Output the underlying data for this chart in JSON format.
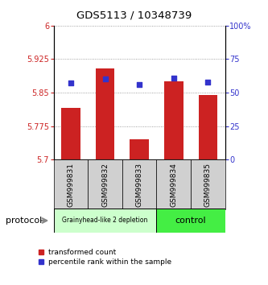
{
  "title": "GDS5113 / 10348739",
  "samples": [
    "GSM999831",
    "GSM999832",
    "GSM999833",
    "GSM999834",
    "GSM999835"
  ],
  "bar_values": [
    5.815,
    5.905,
    5.745,
    5.875,
    5.845
  ],
  "bar_bottom": 5.7,
  "blue_values": [
    57,
    60,
    56,
    61,
    58
  ],
  "ylim_left": [
    5.7,
    6.0
  ],
  "ylim_right": [
    0,
    100
  ],
  "yticks_left": [
    5.7,
    5.775,
    5.85,
    5.925,
    6.0
  ],
  "ytick_labels_left": [
    "5.7",
    "5.775",
    "5.85",
    "5.925",
    "6"
  ],
  "yticks_right": [
    0,
    25,
    50,
    75,
    100
  ],
  "ytick_labels_right": [
    "0",
    "25",
    "50",
    "75",
    "100%"
  ],
  "bar_color": "#cc2222",
  "blue_color": "#3333cc",
  "group1_label": "Grainyhead-like 2 depletion",
  "group2_label": "control",
  "group1_color": "#ccffcc",
  "group2_color": "#44ee44",
  "group1_indices": [
    0,
    1,
    2
  ],
  "group2_indices": [
    3,
    4
  ],
  "protocol_label": "protocol",
  "legend_red_label": "transformed count",
  "legend_blue_label": "percentile rank within the sample",
  "dotted_color": "#888888",
  "background_color": "#ffffff",
  "sample_bg": "#d0d0d0"
}
